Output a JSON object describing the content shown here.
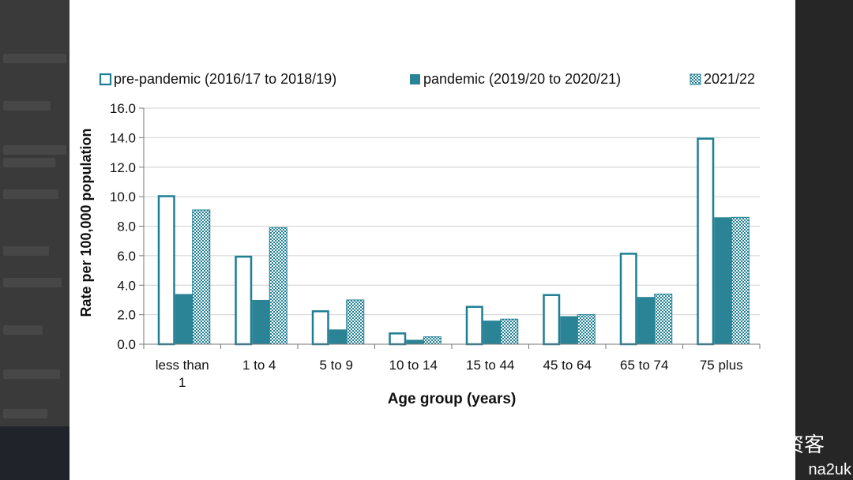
{
  "chart_data": {
    "type": "bar",
    "title": "",
    "xlabel": "Age group (years)",
    "ylabel": "Rate per 100,000 population",
    "ylim": [
      0,
      16
    ],
    "yticks": [
      "0.0",
      "2.0",
      "4.0",
      "6.0",
      "8.0",
      "10.0",
      "12.0",
      "14.0",
      "16.0"
    ],
    "grid": true,
    "legend_position": "top",
    "categories": [
      "less than 1",
      "1 to 4",
      "5 to 9",
      "10 to 14",
      "15 to 44",
      "45 to 64",
      "65 to 74",
      "75 plus"
    ],
    "series": [
      {
        "name": "pre-pandemic (2016/17 to 2018/19)",
        "style": "hollow",
        "color": "#1d7f94",
        "values": [
          10.1,
          6.0,
          2.3,
          0.8,
          2.6,
          3.4,
          6.2,
          14.0
        ]
      },
      {
        "name": "pandemic (2019/20 to 2020/21)",
        "style": "solid",
        "color": "#2a8496",
        "values": [
          3.4,
          3.0,
          1.0,
          0.3,
          1.6,
          1.9,
          3.2,
          8.6
        ]
      },
      {
        "name": "2021/22",
        "style": "checkered",
        "color": "#1d7f94",
        "values": [
          9.1,
          7.9,
          3.0,
          0.5,
          1.7,
          2.0,
          3.4,
          8.6
        ]
      }
    ]
  },
  "watermark": {
    "brand": "英伦投资客",
    "handle": "na2uk"
  }
}
